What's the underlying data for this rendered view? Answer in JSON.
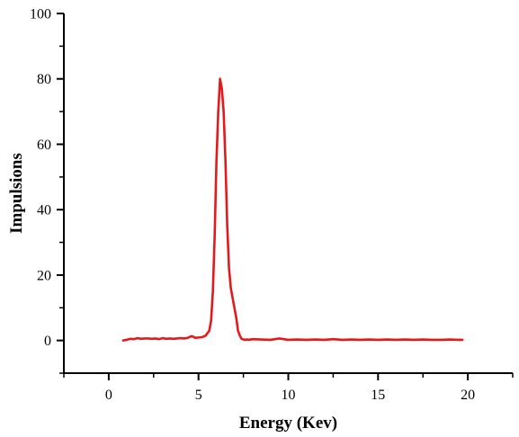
{
  "chart_data": {
    "type": "line",
    "title": "",
    "xlabel": "Energy (Kev)",
    "ylabel": "Impulsions",
    "xlim": [
      -2.5,
      22.5
    ],
    "ylim": [
      -10,
      100
    ],
    "x_ticks": [
      0,
      5,
      10,
      15,
      20
    ],
    "y_ticks": [
      0,
      20,
      40,
      60,
      80,
      100
    ],
    "grid": false,
    "legend": "none",
    "series": [
      {
        "color": "#e31a1c",
        "x": [
          0.8,
          1.0,
          1.2,
          1.4,
          1.6,
          1.8,
          2.0,
          2.2,
          2.4,
          2.6,
          2.8,
          3.0,
          3.2,
          3.4,
          3.6,
          3.8,
          4.0,
          4.2,
          4.4,
          4.6,
          4.7,
          4.8,
          5.0,
          5.2,
          5.4,
          5.6,
          5.7,
          5.8,
          5.9,
          6.0,
          6.1,
          6.2,
          6.3,
          6.4,
          6.5,
          6.6,
          6.7,
          6.8,
          6.9,
          7.0,
          7.1,
          7.2,
          7.3,
          7.4,
          7.5,
          7.6,
          7.7,
          7.8,
          8.0,
          8.5,
          9.0,
          9.5,
          10.0,
          10.5,
          11.0,
          11.5,
          12.0,
          12.5,
          13.0,
          13.5,
          14.0,
          14.5,
          15.0,
          15.5,
          16.0,
          16.5,
          17.0,
          17.5,
          18.0,
          18.5,
          19.0,
          19.5,
          19.7
        ],
        "y": [
          0.0,
          0.2,
          0.5,
          0.4,
          0.7,
          0.5,
          0.6,
          0.6,
          0.5,
          0.6,
          0.4,
          0.7,
          0.5,
          0.6,
          0.5,
          0.6,
          0.7,
          0.6,
          0.8,
          1.3,
          1.2,
          0.8,
          0.9,
          1.0,
          1.5,
          3.0,
          6.0,
          15.0,
          32.0,
          55.0,
          70.0,
          80.0,
          77.0,
          70.0,
          55.0,
          35.0,
          22.0,
          16.0,
          13.0,
          10.0,
          7.0,
          3.0,
          1.5,
          0.5,
          0.3,
          0.2,
          0.3,
          0.2,
          0.4,
          0.3,
          0.2,
          0.6,
          0.2,
          0.3,
          0.2,
          0.3,
          0.2,
          0.4,
          0.2,
          0.3,
          0.2,
          0.3,
          0.2,
          0.3,
          0.2,
          0.3,
          0.2,
          0.3,
          0.2,
          0.2,
          0.3,
          0.2,
          0.2
        ]
      }
    ]
  }
}
